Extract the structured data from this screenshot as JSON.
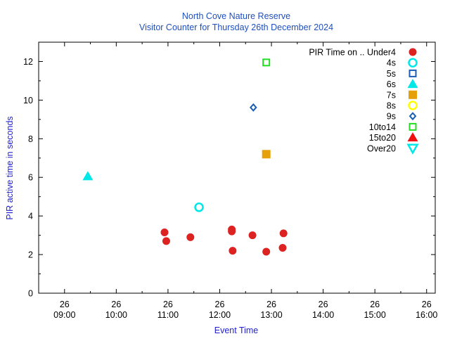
{
  "chart_data": {
    "type": "scatter",
    "title": "North Cove Nature Reserve",
    "subtitle": "Visitor Counter for Thursday 26th December 2024",
    "xlabel": "Event Time",
    "ylabel": "PIR active time in seconds",
    "xlim": [
      "08:30",
      "16:10"
    ],
    "ylim": [
      0,
      13
    ],
    "x_ticks": [
      {
        "day": "26",
        "time": "09:00"
      },
      {
        "day": "26",
        "time": "10:00"
      },
      {
        "day": "26",
        "time": "11:00"
      },
      {
        "day": "26",
        "time": "12:00"
      },
      {
        "day": "26",
        "time": "13:00"
      },
      {
        "day": "26",
        "time": "14:00"
      },
      {
        "day": "26",
        "time": "15:00"
      },
      {
        "day": "26",
        "time": "16:00"
      }
    ],
    "y_ticks": [
      0,
      2,
      4,
      6,
      8,
      10,
      12
    ],
    "grid": false,
    "legend_position": "top-right",
    "legend_title": "PIR Time on .. Under4",
    "series": [
      {
        "name": "Under4",
        "marker": "circle-filled",
        "color": "#dd2222",
        "points": [
          {
            "x": "10:56",
            "y": 3.15
          },
          {
            "x": "10:58",
            "y": 2.7
          },
          {
            "x": "11:26",
            "y": 2.9
          },
          {
            "x": "12:14",
            "y": 3.3
          },
          {
            "x": "12:14",
            "y": 3.2
          },
          {
            "x": "12:15",
            "y": 2.2
          },
          {
            "x": "12:38",
            "y": 3.0
          },
          {
            "x": "12:54",
            "y": 2.15
          },
          {
            "x": "13:13",
            "y": 2.35
          },
          {
            "x": "13:14",
            "y": 3.1
          }
        ]
      },
      {
        "name": "4s",
        "marker": "circle-open",
        "color": "#00e8e8",
        "points": [
          {
            "x": "11:36",
            "y": 4.45
          }
        ]
      },
      {
        "name": "5s",
        "marker": "square-open",
        "color": "#1a5fb4",
        "points": []
      },
      {
        "name": "6s",
        "marker": "triangle-filled",
        "color": "#00e8e8",
        "points": [
          {
            "x": "09:27",
            "y": 6.05
          }
        ]
      },
      {
        "name": "7s",
        "marker": "square-filled",
        "color": "#e6a00a",
        "points": [
          {
            "x": "12:54",
            "y": 7.2
          }
        ]
      },
      {
        "name": "8s",
        "marker": "circle-open",
        "color": "#ffff00",
        "points": []
      },
      {
        "name": "9s",
        "marker": "diamond-open",
        "color": "#1a5fb4",
        "points": [
          {
            "x": "12:39",
            "y": 9.62
          }
        ]
      },
      {
        "name": "10to14",
        "marker": "square-open",
        "color": "#22dd22",
        "points": [
          {
            "x": "12:54",
            "y": 11.95
          }
        ]
      },
      {
        "name": "15to20",
        "marker": "triangle-filled",
        "color": "#ee1111",
        "points": []
      },
      {
        "name": "Over20",
        "marker": "triangle-down-open",
        "color": "#00e8e8",
        "points": []
      }
    ]
  }
}
